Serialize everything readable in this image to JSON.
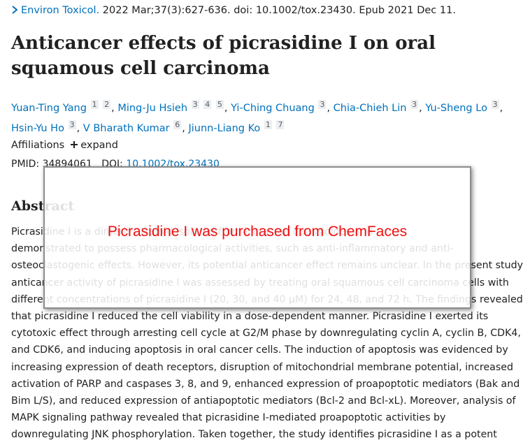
{
  "citation": {
    "journal": "Environ Toxicol.",
    "details": "2022 Mar;37(3):627-636. doi: 10.1002/tox.23430. Epub 2021 Dec 11."
  },
  "title": "Anticancer effects of picrasidine I on oral squamous cell carcinoma",
  "author_separator": ",",
  "authors": [
    {
      "name": "Yuan-Ting Yang",
      "affiliations": [
        "1",
        "2"
      ]
    },
    {
      "name": "Ming-Ju Hsieh",
      "affiliations": [
        "3",
        "4",
        "5"
      ]
    },
    {
      "name": "Yi-Ching Chuang",
      "affiliations": [
        "3"
      ]
    },
    {
      "name": "Chia-Chieh Lin",
      "affiliations": [
        "3"
      ]
    },
    {
      "name": "Yu-Sheng Lo",
      "affiliations": [
        "3"
      ]
    },
    {
      "name": "Hsin-Yu Ho",
      "affiliations": [
        "3"
      ]
    },
    {
      "name": "V Bharath Kumar",
      "affiliations": [
        "6"
      ]
    },
    {
      "name": "Jiunn-Liang Ko",
      "affiliations": [
        "1",
        "7"
      ]
    }
  ],
  "affiliations": {
    "label": "Affiliations",
    "toggle": "expand"
  },
  "identifiers": {
    "pmid_label": "PMID:",
    "pmid": "34894061",
    "doi_label": "DOI:",
    "doi": "10.1002/tox.23430"
  },
  "abstract": {
    "heading": "Abstract",
    "lines": [
      "Picrasidine I is a dimeric alkaloid isolated from Picrasma quassioides and",
      "demonstrated to possess pharmacological activities, such as anti-inflammatory and anti-",
      "osteoclastogenic effects. However, its potential anticancer effect remains unclear. In the present study,",
      "anticancer activity of picrasidine I was assessed by treating oral squamous cell carcinoma cells with",
      "different concentrations of picrasidine I (20, 30, and 40 μM) for 24, 48, and 72 h. The findings revealed",
      "that picrasidine I reduced the cell viability in a dose-dependent manner. Picrasidine I exerted its",
      "cytotoxic effect through arresting cell cycle at G2/M phase by downregulating cyclin A, cyclin B, CDK4,",
      "and CDK6, and inducing apoptosis in oral cancer cells. The induction of apoptosis was evidenced by",
      "increasing expression of death receptors, disruption of mitochondrial membrane potential, increased",
      "activation of PARP and caspases 3, 8, and 9, enhanced expression of proapoptotic mediators (Bak and",
      "Bim L/S), and reduced expression of antiapoptotic mediators (Bcl-2 and Bcl-xL). Moreover, analysis of",
      "MAPK signaling pathway revealed that picrasidine I-mediated proapoptotic activities by",
      "downregulating JNK phosphorylation. Taken together, the study identifies picrasidine I as a potent"
    ]
  },
  "popup": {
    "text": "Picrasidine I was purchased from ChemFaces"
  }
}
